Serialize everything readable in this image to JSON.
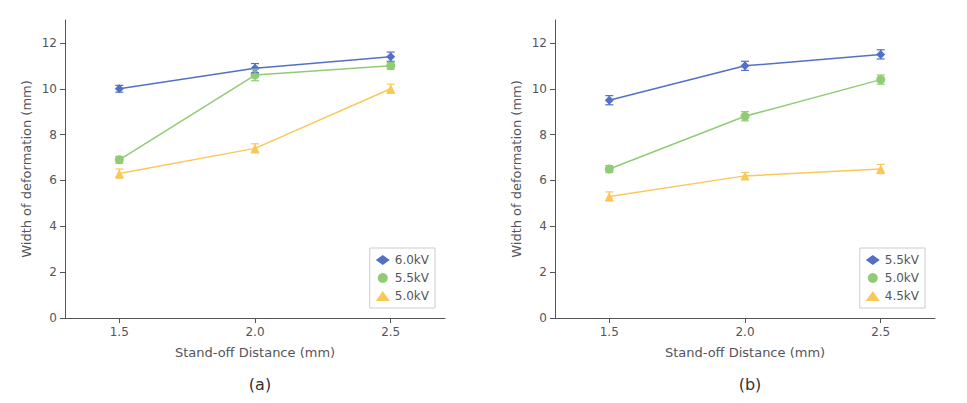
{
  "chart_data": [
    {
      "type": "line",
      "title": "(a)",
      "x_label": "Stand-off Distance (mm)",
      "y_label": "Width of deformation (mm)",
      "x": [
        1.5,
        2.0,
        2.5
      ],
      "xlim": [
        1.3,
        2.7
      ],
      "xticks": [
        1.5,
        {
          "value": 2.0,
          "label": "2.0"
        },
        2.5
      ],
      "ylim": [
        0,
        13
      ],
      "yticks": [
        0,
        2,
        4,
        6,
        8,
        10,
        12
      ],
      "grid": false,
      "legend": "lower right",
      "series": [
        {
          "name": "6.0kV",
          "marker": "diamond",
          "values": [
            10.0,
            10.9,
            11.4
          ],
          "yerr": [
            0.15,
            0.2,
            0.2
          ]
        },
        {
          "name": "5.5kV",
          "marker": "circle",
          "values": [
            6.9,
            10.6,
            11.0
          ],
          "yerr": [
            0.15,
            0.25,
            0.15
          ]
        },
        {
          "name": "5.0kV",
          "marker": "triangle",
          "values": [
            6.3,
            7.4,
            10.0
          ],
          "yerr": [
            0.2,
            0.2,
            0.2
          ]
        }
      ]
    },
    {
      "type": "line",
      "title": "(b)",
      "x_label": "Stand-off Distance (mm)",
      "y_label": "Width of deformation (mm)",
      "x": [
        1.5,
        2.0,
        2.5
      ],
      "xlim": [
        1.3,
        2.7
      ],
      "xticks": [
        1.5,
        {
          "value": 2.0,
          "label": "2.0"
        },
        2.5
      ],
      "ylim": [
        0,
        13
      ],
      "yticks": [
        0,
        2,
        4,
        6,
        8,
        10,
        12
      ],
      "grid": false,
      "legend": "lower right",
      "series": [
        {
          "name": "5.5kV",
          "marker": "diamond",
          "values": [
            9.5,
            11.0,
            11.5
          ],
          "yerr": [
            0.2,
            0.2,
            0.2
          ]
        },
        {
          "name": "5.0kV",
          "marker": "circle",
          "values": [
            6.5,
            8.8,
            10.4
          ],
          "yerr": [
            0.15,
            0.2,
            0.2
          ]
        },
        {
          "name": "4.5kV",
          "marker": "triangle",
          "values": [
            5.3,
            6.2,
            6.5
          ],
          "yerr": [
            0.2,
            0.15,
            0.2
          ]
        }
      ]
    }
  ]
}
